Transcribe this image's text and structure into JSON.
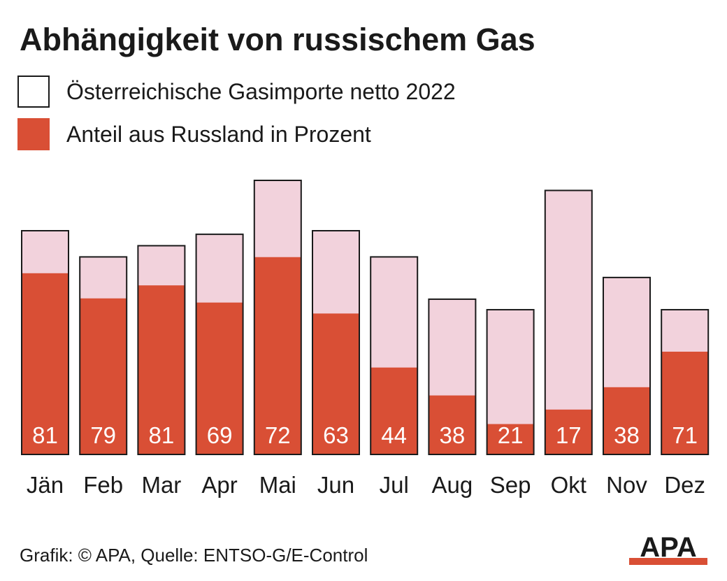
{
  "title": "Abhängigkeit von russischem Gas",
  "legend": [
    {
      "label": "Österreichische Gasimporte netto 2022",
      "color": "#ffffff"
    },
    {
      "label": "Anteil aus Russland in Prozent",
      "color": "#d94f35"
    }
  ],
  "footer": "Grafik: © APA, Quelle: ENTSO-G/E-Control",
  "logo_text": "APA",
  "colors": {
    "total": "#f2d2dc",
    "russia": "#d94f35",
    "outline": "#1a1a1a",
    "label": "#ffffff"
  },
  "chart_data": {
    "type": "bar",
    "categories": [
      "Jän",
      "Feb",
      "Mar",
      "Apr",
      "Mai",
      "Jun",
      "Jul",
      "Aug",
      "Sep",
      "Okt",
      "Nov",
      "Dez"
    ],
    "series": [
      {
        "name": "Österreichische Gasimporte netto 2022",
        "values": [
          100,
          88.3,
          93.3,
          98.4,
          122.5,
          100,
          88.3,
          69.4,
          64.7,
          118,
          79.1,
          64.7
        ]
      },
      {
        "name": "Anteil aus Russland in Prozent",
        "values": [
          81,
          79,
          81,
          69,
          72,
          63,
          44,
          38,
          21,
          17,
          38,
          71
        ]
      }
    ]
  }
}
